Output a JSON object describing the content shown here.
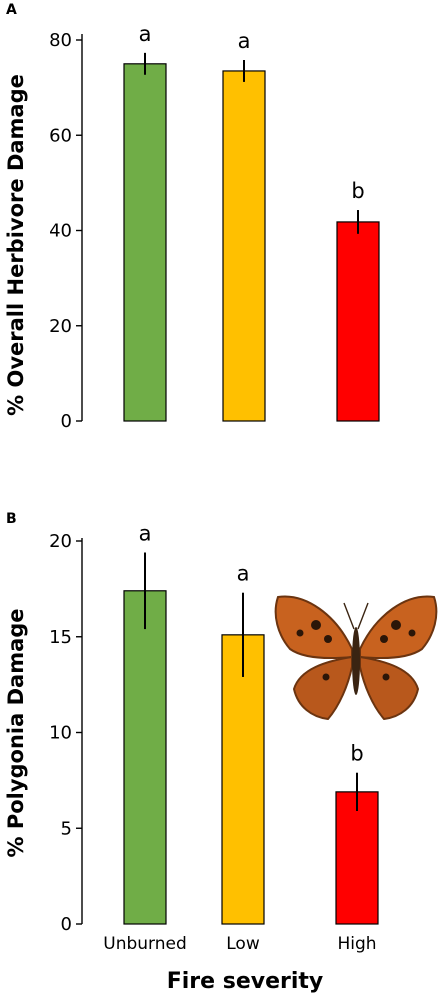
{
  "chart_data": [
    {
      "panel": "A",
      "type": "bar",
      "categories": [
        "Unburned",
        "Low",
        "High"
      ],
      "values": [
        75,
        73.5,
        41.8
      ],
      "errors": [
        2.3,
        2.3,
        2.5
      ],
      "letters": [
        "a",
        "a",
        "b"
      ],
      "colors": [
        "#70ad47",
        "#ffc000",
        "#ff0000"
      ],
      "ylabel": "% Overall Herbivore Damage",
      "ylim": [
        0,
        80
      ],
      "yticks": [
        0,
        20,
        40,
        60,
        80
      ],
      "show_category_labels": false
    },
    {
      "panel": "B",
      "type": "bar",
      "categories": [
        "Unburned",
        "Low",
        "High"
      ],
      "values": [
        17.4,
        15.1,
        6.9
      ],
      "errors": [
        2.0,
        2.2,
        1.0
      ],
      "letters": [
        "a",
        "a",
        "b"
      ],
      "colors": [
        "#70ad47",
        "#ffc000",
        "#ff0000"
      ],
      "ylabel": "% Polygonia Damage",
      "ylim": [
        0,
        20
      ],
      "yticks": [
        0,
        5,
        10,
        15,
        20
      ],
      "show_category_labels": true
    }
  ],
  "xlabel": "Fire severity",
  "inset_image": "butterfly-photo"
}
